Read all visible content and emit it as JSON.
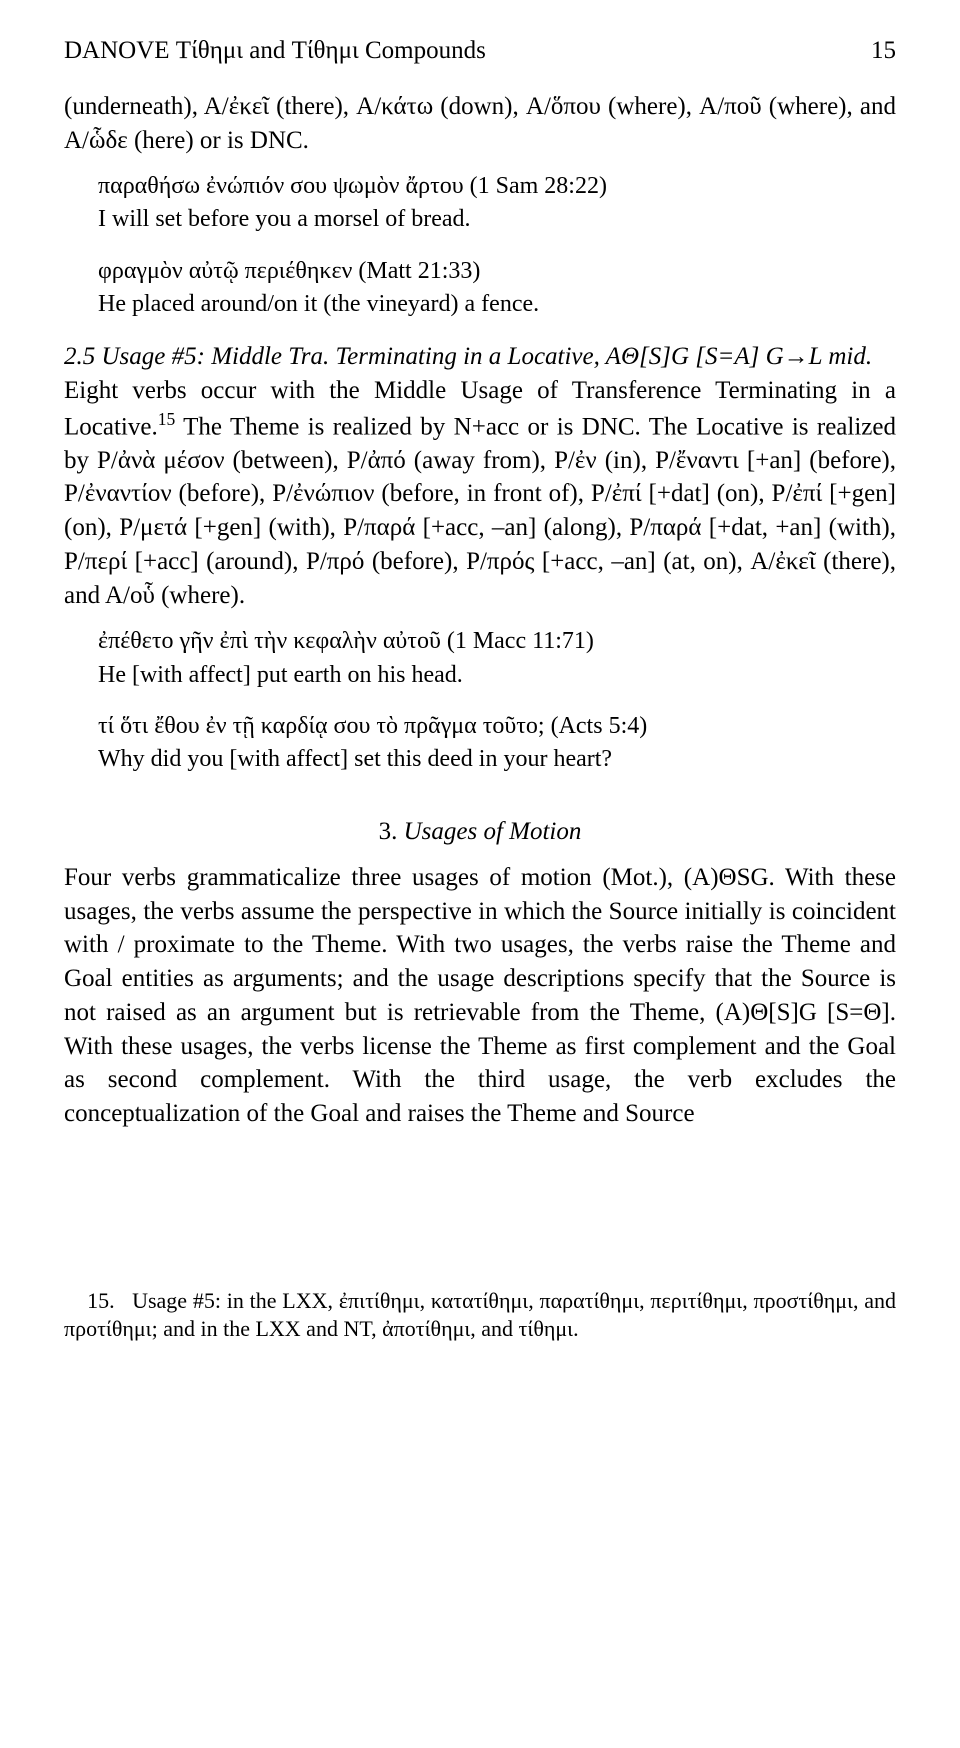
{
  "header": {
    "running_left": "DANOVE  Τίθημι and Τίθημι Compounds",
    "page_number": "15"
  },
  "para1": "(underneath), A/ἐκεῖ (there), A/κάτω (down), A/ὅπου (where), A/ποῦ (where), and A/ὧδε (here) or is DNC.",
  "example1_greek": "παραθήσω ἐνώπιόν σου ψωμὸν ἄρτου (1 Sam 28:22)",
  "example1_gloss": "I will set before you a morsel of bread.",
  "example2_greek": "φραγμὸν αὐτῷ περιέθηκεν (Matt 21:33)",
  "example2_gloss": "He placed around/on it (the vineyard) a fence.",
  "para2_heading": "2.5 Usage #5: Middle Tra. Terminating in a Locative, AΘ[S]G [S=A] G→L mid.",
  "para2_body_a": "Eight verbs occur with the Middle Usage of Transference Terminating in a Locative.",
  "para2_fn_marker": "15",
  "para2_body_b": " The Theme is realized by N+acc or is DNC. The Locative is realized by P/ἀνὰ μέσον (between), P/ἀπό (away from), P/ἐν (in), P/ἔναντι [+an] (before), P/ἐναντίον (before), P/ἐνώπιον (before, in front of), P/ἐπί [+dat] (on), P/ἐπί [+gen] (on), P/μετά [+gen] (with), P/παρά [+acc, –an] (along), P/παρά [+dat, +an] (with), P/περί [+acc] (around), P/πρό (before), P/πρός [+acc, –an] (at, on), A/ἐκεῖ (there), and A/οὗ (where).",
  "example3_greek": "ἐπέθετο γῆν ἐπὶ τὴν κεφαλὴν αὐτοῦ (1 Macc 11:71)",
  "example3_gloss": "He [with affect] put earth on his head.",
  "example4_greek": "τί ὅτι ἔθου ἐν τῇ καρδίᾳ σου τὸ πρᾶγμα τοῦτο; (Acts 5:4)",
  "example4_gloss": "Why did you [with affect] set this deed in your heart?",
  "section3_number": "3",
  "section3_title": "Usages of Motion",
  "para3": "Four verbs grammaticalize three usages of motion (Mot.), (A)ΘSG. With these usages, the verbs assume the perspective in which the Source initially is coincident with / proximate to the Theme. With two usages, the verbs raise the Theme and Goal entities as arguments; and the usage descriptions specify that the Source is not raised as an argument but is retrievable from the Theme, (A)Θ[S]G [S=Θ]. With these usages, the verbs license the Theme as first complement and the Goal as second complement. With the third usage, the verb excludes the conceptualization of the Goal and raises the Theme and Source",
  "footnote_marker": "15.",
  "footnote_text": "Usage #5: in the LXX, ἐπιτίθημι, κατατίθημι, παρατίθημι, περιτίθημι, προστίθημι, and προτίθημι; and in the LXX and NT, ἀποτίθημι, and τίθημι."
}
